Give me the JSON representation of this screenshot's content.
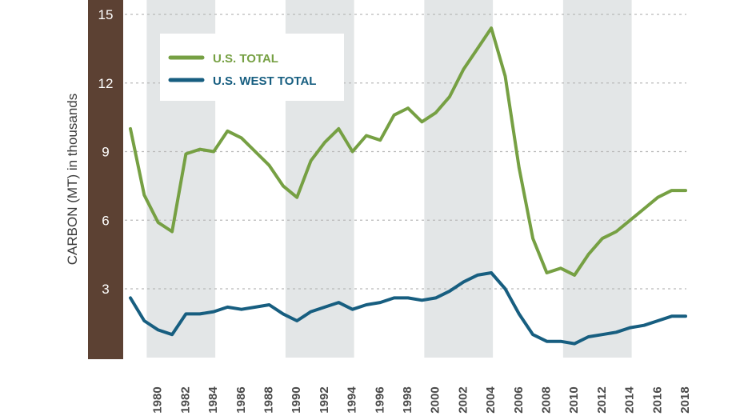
{
  "chart_data": {
    "type": "line",
    "title": "",
    "xlabel": "",
    "ylabel": "CARBON (MT) in thousands",
    "ylim": [
      0,
      15
    ],
    "xlim": [
      1978,
      2018
    ],
    "yticks": [
      3,
      6,
      9,
      12,
      15
    ],
    "yticklabels": [
      "3",
      "6",
      "9",
      "12",
      "15"
    ],
    "xticks": [
      1980,
      1982,
      1984,
      1986,
      1988,
      1990,
      1992,
      1994,
      1996,
      1998,
      2000,
      2002,
      2004,
      2006,
      2008,
      2010,
      2012,
      2014,
      2016,
      2018
    ],
    "xticklabels": [
      "1980",
      "1982",
      "1984",
      "1986",
      "1988",
      "1990",
      "1992",
      "1994",
      "1996",
      "1998",
      "2000",
      "2002",
      "2004",
      "2006",
      "2008",
      "2010",
      "2012",
      "2014",
      "2016",
      "2018"
    ],
    "shaded_ranges": [
      [
        1979,
        1984
      ],
      [
        1989,
        1994
      ],
      [
        1999,
        2004
      ],
      [
        2009,
        2014
      ]
    ],
    "grid": true,
    "legend_position": "top-left",
    "x": [
      1978,
      1979,
      1980,
      1981,
      1982,
      1983,
      1984,
      1985,
      1986,
      1987,
      1988,
      1989,
      1990,
      1991,
      1992,
      1993,
      1994,
      1995,
      1996,
      1997,
      1998,
      1999,
      2000,
      2001,
      2002,
      2003,
      2004,
      2005,
      2006,
      2007,
      2008,
      2009,
      2010,
      2011,
      2012,
      2013,
      2014,
      2015,
      2016,
      2017,
      2018
    ],
    "series": [
      {
        "name": "U.S. TOTAL",
        "color": "#76a043",
        "values": [
          10.0,
          7.1,
          5.9,
          5.5,
          8.9,
          9.1,
          9.0,
          9.9,
          9.6,
          9.0,
          8.4,
          7.5,
          7.0,
          8.6,
          9.4,
          10.0,
          9.0,
          9.7,
          9.5,
          10.6,
          10.9,
          10.3,
          10.7,
          11.4,
          12.6,
          13.5,
          14.4,
          12.3,
          8.3,
          5.2,
          3.7,
          3.9,
          3.6,
          4.5,
          5.2,
          5.5,
          6.0,
          6.5,
          7.0,
          7.3,
          7.3
        ]
      },
      {
        "name": "U.S. WEST TOTAL",
        "color": "#175e80",
        "values": [
          2.6,
          1.6,
          1.2,
          1.0,
          1.9,
          1.9,
          2.0,
          2.2,
          2.1,
          2.2,
          2.3,
          1.9,
          1.6,
          2.0,
          2.2,
          2.4,
          2.1,
          2.3,
          2.4,
          2.6,
          2.6,
          2.5,
          2.6,
          2.9,
          3.3,
          3.6,
          3.7,
          3.0,
          1.9,
          1.0,
          0.7,
          0.7,
          0.6,
          0.9,
          1.0,
          1.1,
          1.3,
          1.4,
          1.6,
          1.8,
          1.8
        ]
      }
    ]
  }
}
